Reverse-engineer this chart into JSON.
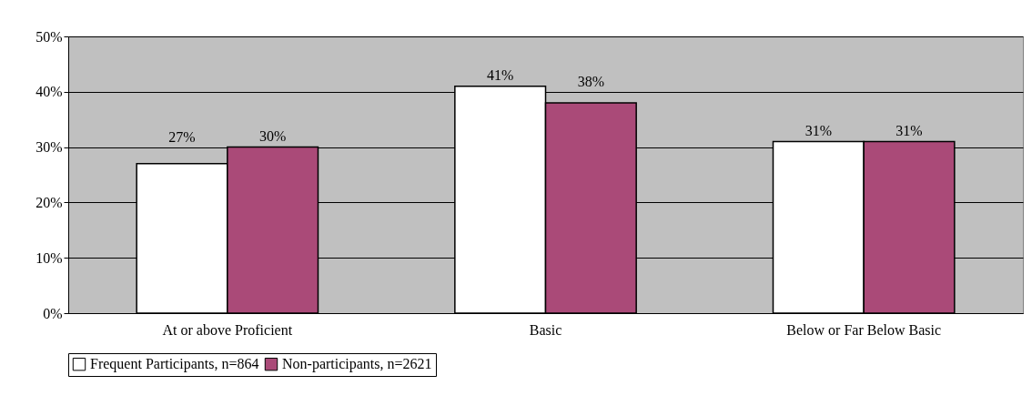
{
  "chart_data": {
    "type": "bar",
    "categories": [
      "At or above Proficient",
      "Basic",
      "Below or Far Below  Basic"
    ],
    "series": [
      {
        "name": "Frequent Participants, n=864",
        "color": "#ffffff",
        "values": [
          27,
          41,
          31
        ],
        "value_labels": [
          "27%",
          "41%",
          "31%"
        ]
      },
      {
        "name": "Non-participants, n=2621",
        "color": "#aa4a78",
        "values": [
          30,
          38,
          31
        ],
        "value_labels": [
          "30%",
          "38%",
          "31%"
        ]
      }
    ],
    "ylim": [
      0,
      50
    ],
    "yticks": [
      {
        "value": 0,
        "label": "0%"
      },
      {
        "value": 10,
        "label": "10%"
      },
      {
        "value": 20,
        "label": "20%"
      },
      {
        "value": 30,
        "label": "30%"
      },
      {
        "value": 40,
        "label": "40%"
      },
      {
        "value": 50,
        "label": "50%"
      }
    ],
    "grid": "y",
    "legend": "bottom"
  }
}
